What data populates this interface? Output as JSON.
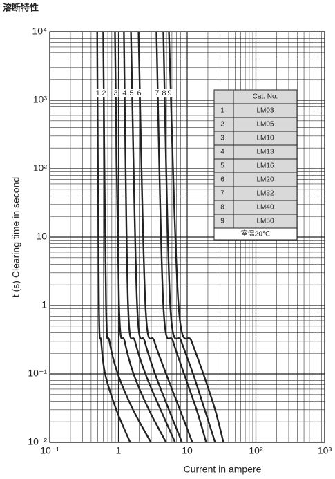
{
  "chart_data": {
    "type": "line",
    "title": "溶断特性",
    "x_label": "Current in ampere",
    "y_label": "t (s)  Clearing time in second",
    "log_x": true,
    "log_y": true,
    "grid": true,
    "minor_grid": true,
    "xlim": [
      0.1,
      1000
    ],
    "ylim": [
      0.01,
      10000
    ],
    "xticks": [
      {
        "value": 0.1,
        "label": "10⁻¹"
      },
      1,
      10,
      {
        "value": 100,
        "label": "10²"
      },
      {
        "value": 1000,
        "label": "10³"
      }
    ],
    "yticks": [
      {
        "value": 0.01,
        "label": "10⁻²"
      },
      {
        "value": 0.1,
        "label": "10⁻¹"
      },
      1,
      10,
      {
        "value": 100,
        "label": "10²"
      },
      {
        "value": 1000,
        "label": "10³"
      },
      {
        "value": 10000,
        "label": "10⁴"
      }
    ],
    "series": [
      {
        "name": "1",
        "color": "#222222",
        "x": [
          0.49,
          0.52,
          0.56,
          0.64,
          0.93,
          1.48
        ],
        "values": [
          10000,
          1,
          0.3,
          0.1,
          0.03,
          0.01
        ]
      },
      {
        "name": "2",
        "color": "#222222",
        "x": [
          0.6,
          0.66,
          0.74,
          0.98,
          1.63,
          2.97
        ],
        "values": [
          10000,
          1,
          0.3,
          0.1,
          0.03,
          0.01
        ]
      },
      {
        "name": "3",
        "color": "#222222",
        "x": [
          0.89,
          1.02,
          1.23,
          1.66,
          2.77,
          4.94
        ],
        "values": [
          10000,
          1,
          0.3,
          0.1,
          0.03,
          0.01
        ]
      },
      {
        "name": "4",
        "color": "#222222",
        "x": [
          1.2,
          1.38,
          1.74,
          2.47,
          4.1,
          6.67
        ],
        "values": [
          10000,
          1,
          0.3,
          0.1,
          0.03,
          0.01
        ]
      },
      {
        "name": "5",
        "color": "#222222",
        "x": [
          1.52,
          1.87,
          2.41,
          3.41,
          5.42,
          8.41
        ],
        "values": [
          10000,
          1,
          0.3,
          0.1,
          0.03,
          0.01
        ]
      },
      {
        "name": "6",
        "color": "#222222",
        "x": [
          1.96,
          2.47,
          3.33,
          4.94,
          7.84,
          11.9
        ],
        "values": [
          10000,
          1,
          0.3,
          0.1,
          0.03,
          0.01
        ]
      },
      {
        "name": "7",
        "color": "#222222",
        "x": [
          3.57,
          4.5,
          6.22,
          9.01,
          13.7,
          18.9
        ],
        "values": [
          10000,
          1,
          0.3,
          0.1,
          0.03,
          0.01
        ]
      },
      {
        "name": "8",
        "color": "#222222",
        "x": [
          4.5,
          5.67,
          8.22,
          12.2,
          18.0,
          25.5
        ],
        "values": [
          10000,
          1,
          0.3,
          0.1,
          0.03,
          0.01
        ]
      },
      {
        "name": "9",
        "color": "#222222",
        "x": [
          5.42,
          7.49,
          11.6,
          17.2,
          25.5,
          33.7
        ],
        "values": [
          10000,
          1,
          0.3,
          0.1,
          0.03,
          0.01
        ]
      }
    ],
    "table": {
      "header": "Cat. No.",
      "rows": [
        [
          "1",
          "LM03"
        ],
        [
          "2",
          "LM05"
        ],
        [
          "3",
          "LM10"
        ],
        [
          "4",
          "LM13"
        ],
        [
          "5",
          "LM16"
        ],
        [
          "6",
          "LM20"
        ],
        [
          "7",
          "LM32"
        ],
        [
          "8",
          "LM40"
        ],
        [
          "9",
          "LM50"
        ]
      ],
      "note": "室温20℃"
    }
  }
}
